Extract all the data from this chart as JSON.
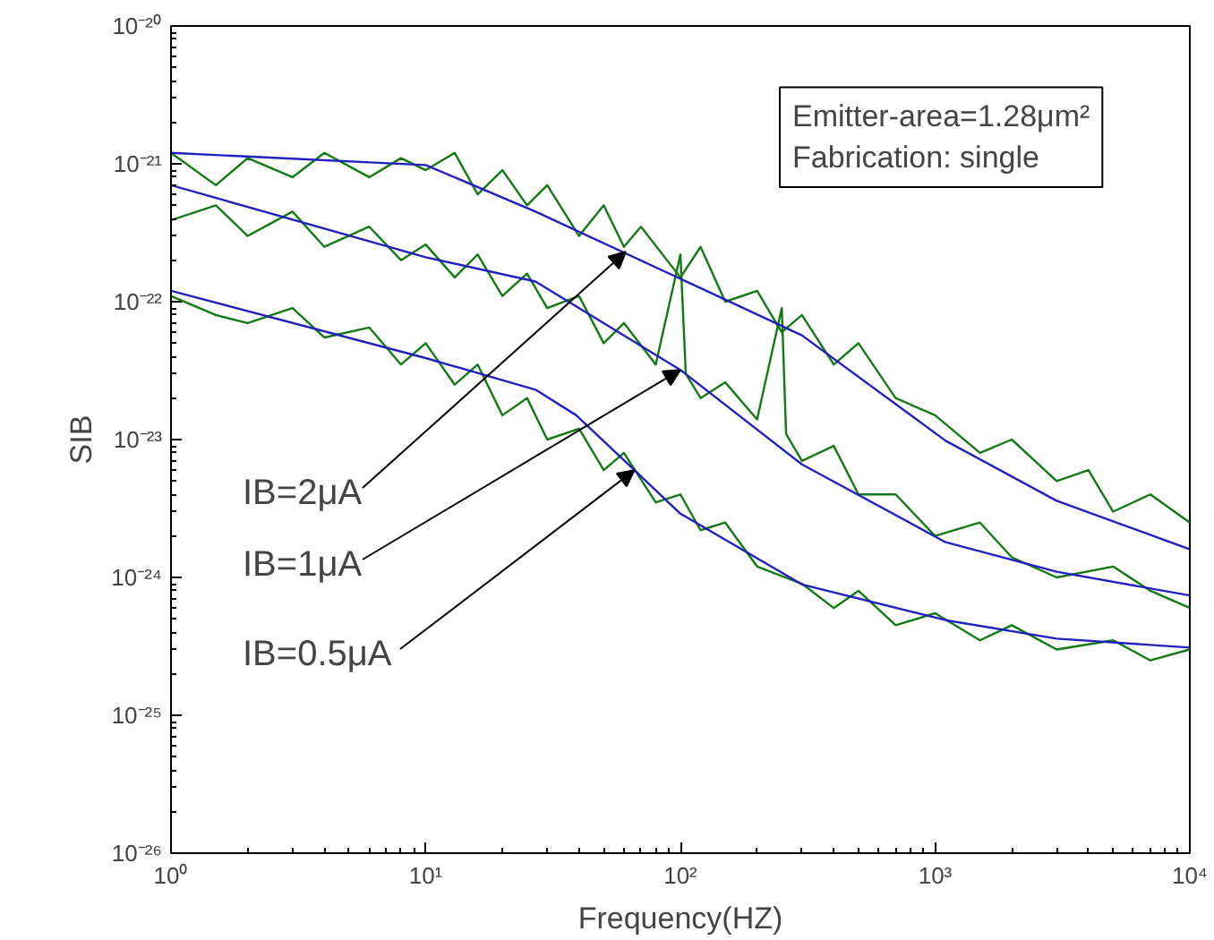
{
  "chart_data": {
    "type": "line",
    "xlabel": "Frequency(HZ)",
    "ylabel": "SIB",
    "log": "xy",
    "grid": false,
    "marker": "none",
    "line_style": "solid",
    "xlim": [
      1,
      10000
    ],
    "ylim": [
      1e-26,
      1e-20
    ],
    "xticks": [
      {
        "value": 1,
        "label": "10⁰"
      },
      {
        "value": 10,
        "label": "10¹"
      },
      {
        "value": 100,
        "label": "10²"
      },
      {
        "value": 1000,
        "label": "10³"
      },
      {
        "value": 10000,
        "label": "10⁴"
      }
    ],
    "yticks": [
      {
        "value": 1e-26,
        "label": "10⁻²⁶"
      },
      {
        "value": 1e-25,
        "label": "10⁻²⁵"
      },
      {
        "value": 1e-24,
        "label": "10⁻²⁴"
      },
      {
        "value": 1e-23,
        "label": "10⁻²³"
      },
      {
        "value": 1e-22,
        "label": "10⁻²²"
      },
      {
        "value": 1e-21,
        "label": "10⁻²¹"
      },
      {
        "value": 1e-20,
        "label": "10⁻²⁰"
      }
    ],
    "series": [
      {
        "color": "#127a12",
        "x": [
          1,
          1.5,
          2,
          3,
          4,
          6,
          8,
          10,
          13,
          16,
          20,
          25,
          30,
          40,
          50,
          60,
          70,
          100,
          120,
          150,
          200,
          250,
          300,
          400,
          500,
          700,
          1000,
          1500,
          2000,
          3000,
          4000,
          5000,
          7000,
          10000
        ],
        "values": [
          1.2e-21,
          7e-22,
          1.1e-21,
          8e-22,
          1.2e-21,
          8e-22,
          1.1e-21,
          9e-22,
          1.2e-21,
          6e-22,
          9e-22,
          5e-22,
          7e-22,
          3e-22,
          5e-22,
          2.5e-22,
          3.5e-22,
          1.5e-22,
          2.5e-22,
          1e-22,
          1.2e-22,
          6e-23,
          8e-23,
          3.5e-23,
          5e-23,
          2e-23,
          1.5e-23,
          8e-24,
          1e-23,
          5e-24,
          6e-24,
          3e-24,
          4e-24,
          2.5e-24
        ]
      },
      {
        "color": "#127a12",
        "x": [
          1,
          1.5,
          2,
          3,
          4,
          6,
          8,
          10,
          13,
          16,
          20,
          25,
          30,
          40,
          50,
          60,
          80,
          100,
          105,
          120,
          150,
          200,
          250,
          260,
          300,
          400,
          500,
          700,
          1000,
          1500,
          2000,
          3000,
          5000,
          7000,
          10000
        ],
        "values": [
          3.9e-22,
          5e-22,
          3e-22,
          4.5e-22,
          2.5e-22,
          3.5e-22,
          2e-22,
          2.6e-22,
          1.5e-22,
          2.2e-22,
          1.1e-22,
          1.6e-22,
          9e-23,
          1.1e-22,
          5e-23,
          7e-23,
          3.5e-23,
          2.2e-22,
          3e-23,
          2e-23,
          2.6e-23,
          1.4e-23,
          9e-23,
          1.1e-23,
          7e-24,
          9e-24,
          4e-24,
          4e-24,
          2e-24,
          2.5e-24,
          1.4e-24,
          1e-24,
          1.2e-24,
          8e-25,
          6e-25
        ]
      },
      {
        "color": "#127a12",
        "x": [
          1,
          1.5,
          2,
          3,
          4,
          6,
          8,
          10,
          13,
          16,
          20,
          25,
          30,
          40,
          50,
          60,
          80,
          100,
          120,
          150,
          200,
          300,
          400,
          500,
          700,
          1000,
          1500,
          2000,
          3000,
          5000,
          7000,
          10000
        ],
        "values": [
          1.1e-22,
          8e-23,
          7e-23,
          9e-23,
          5.5e-23,
          6.5e-23,
          3.5e-23,
          5e-23,
          2.5e-23,
          3.5e-23,
          1.5e-23,
          2e-23,
          1e-23,
          1.2e-23,
          6e-24,
          8e-24,
          3.5e-24,
          4e-24,
          2.2e-24,
          2.5e-24,
          1.2e-24,
          9e-25,
          6e-25,
          8e-25,
          4.5e-25,
          5.5e-25,
          3.5e-25,
          4.5e-25,
          3e-25,
          3.5e-25,
          2.5e-25,
          3e-25
        ]
      },
      {
        "color": "#2020c0",
        "x": [
          1,
          10,
          27,
          115,
          300,
          1100,
          3000,
          10000
        ],
        "values": [
          1.2e-21,
          9.8e-22,
          4.5e-22,
          1.3e-22,
          5.7e-23,
          9.8e-24,
          3.6e-24,
          1.6e-24
        ]
      },
      {
        "color": "#2020c0",
        "x": [
          1,
          10,
          27,
          100,
          300,
          1100,
          3000,
          10000
        ],
        "values": [
          7e-22,
          2.1e-22,
          1.4e-22,
          3.2e-23,
          6.6e-24,
          1.8e-24,
          1.1e-24,
          7.4e-25
        ]
      },
      {
        "color": "#2020c0",
        "x": [
          1,
          10,
          27,
          39,
          66,
          100,
          300,
          1100,
          3000,
          10000
        ],
        "values": [
          1.2e-22,
          3.9e-23,
          2.3e-23,
          1.5e-23,
          6e-24,
          2.9e-24,
          8.9e-25,
          4.9e-25,
          3.6e-25,
          3.1e-25
        ]
      }
    ],
    "annotations": [
      {
        "text": "IB=2μA",
        "x": 61,
        "y": 2.3e-22
      },
      {
        "text": "IB=1μA",
        "x": 100,
        "y": 3.2e-23
      },
      {
        "text": "IB=0.5μA",
        "x": 66,
        "y": 6e-24
      },
      "Emitter-area=1.28μm²\nFabrication: single"
    ]
  }
}
